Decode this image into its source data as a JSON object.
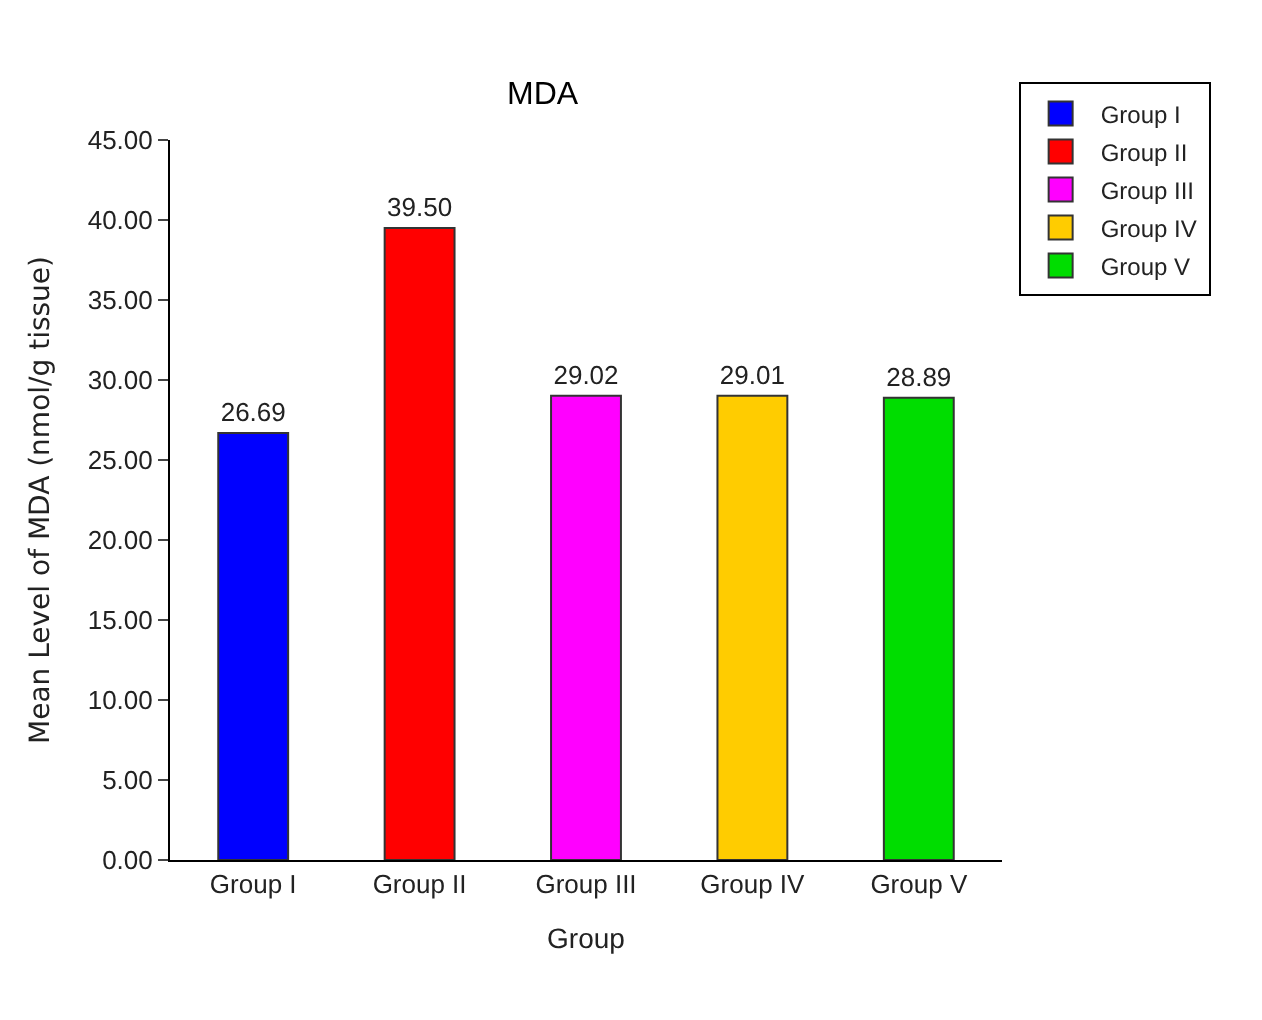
{
  "chart_data": {
    "type": "bar",
    "title": "MDA",
    "xlabel": "Group",
    "ylabel": "Mean Level of MDA (nmol/g tissue)",
    "categories": [
      "Group I",
      "Group II",
      "Group III",
      "Group IV",
      "Group V"
    ],
    "series": [
      {
        "name": "Group I",
        "color": "#0000ff",
        "values": [
          26.69,
          null,
          null,
          null,
          null
        ],
        "value_labels": [
          "26.69",
          null,
          null,
          null,
          null
        ]
      },
      {
        "name": "Group II",
        "color": "#ff0000",
        "values": [
          null,
          39.5,
          null,
          null,
          null
        ],
        "value_labels": [
          null,
          "39.50",
          null,
          null,
          null
        ]
      },
      {
        "name": "Group III",
        "color": "#ff00ff",
        "values": [
          null,
          null,
          29.02,
          null,
          null
        ],
        "value_labels": [
          null,
          null,
          "29.02",
          null,
          null
        ]
      },
      {
        "name": "Group IV",
        "color": "#ffcc00",
        "values": [
          null,
          null,
          null,
          29.01,
          null
        ],
        "value_labels": [
          null,
          null,
          null,
          "29.01",
          null
        ]
      },
      {
        "name": "Group V",
        "color": "#00dd00",
        "values": [
          null,
          null,
          null,
          null,
          28.89
        ],
        "value_labels": [
          null,
          null,
          null,
          null,
          "28.89"
        ]
      }
    ],
    "ylim": [
      0,
      45
    ],
    "yticks": [
      {
        "value": 0,
        "label": "0.00"
      },
      {
        "value": 5,
        "label": "5.00"
      },
      {
        "value": 10,
        "label": "10.00"
      },
      {
        "value": 15,
        "label": "15.00"
      },
      {
        "value": 20,
        "label": "20.00"
      },
      {
        "value": 25,
        "label": "25.00"
      },
      {
        "value": 30,
        "label": "30.00"
      },
      {
        "value": 35,
        "label": "35.00"
      },
      {
        "value": 40,
        "label": "40.00"
      },
      {
        "value": 45,
        "label": "45.00"
      }
    ],
    "legend": "top right"
  }
}
